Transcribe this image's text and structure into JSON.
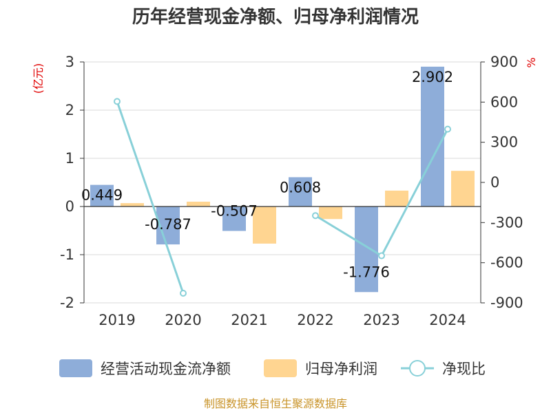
{
  "chart_data": {
    "type": "bar",
    "title": "历年经营现金净额、归母净利润情况",
    "categories": [
      "2019",
      "2020",
      "2021",
      "2022",
      "2023",
      "2024"
    ],
    "series": [
      {
        "name": "经营活动现金流净额",
        "type": "bar",
        "axis": "left",
        "color": "#8eadd9",
        "values": [
          0.449,
          -0.787,
          -0.507,
          0.608,
          -1.776,
          2.902
        ],
        "labels": [
          "0.449",
          "-0.787",
          "-0.507",
          "0.608",
          "-1.776",
          "2.902"
        ]
      },
      {
        "name": "归母净利润",
        "type": "bar",
        "axis": "left",
        "color": "#ffd591",
        "values": [
          0.07,
          0.1,
          -0.77,
          -0.26,
          0.33,
          0.74
        ]
      },
      {
        "name": "净现比",
        "type": "line",
        "axis": "right",
        "color": "#88d0d8",
        "values": [
          605,
          -828,
          null,
          -248,
          -548,
          398
        ]
      }
    ],
    "y_left": {
      "unit": "(亿元)",
      "ylim": [
        -2,
        3
      ],
      "ticks": [
        "3",
        "2",
        "1",
        "0",
        "-1",
        "-2"
      ]
    },
    "y_right": {
      "unit": "%",
      "ylim": [
        -900,
        900
      ],
      "ticks": [
        "900",
        "600",
        "300",
        "0",
        "-300",
        "-600",
        "-900"
      ]
    },
    "grid": true,
    "legend_position": "bottom",
    "source": "制图数据来自恒生聚源数据库"
  }
}
